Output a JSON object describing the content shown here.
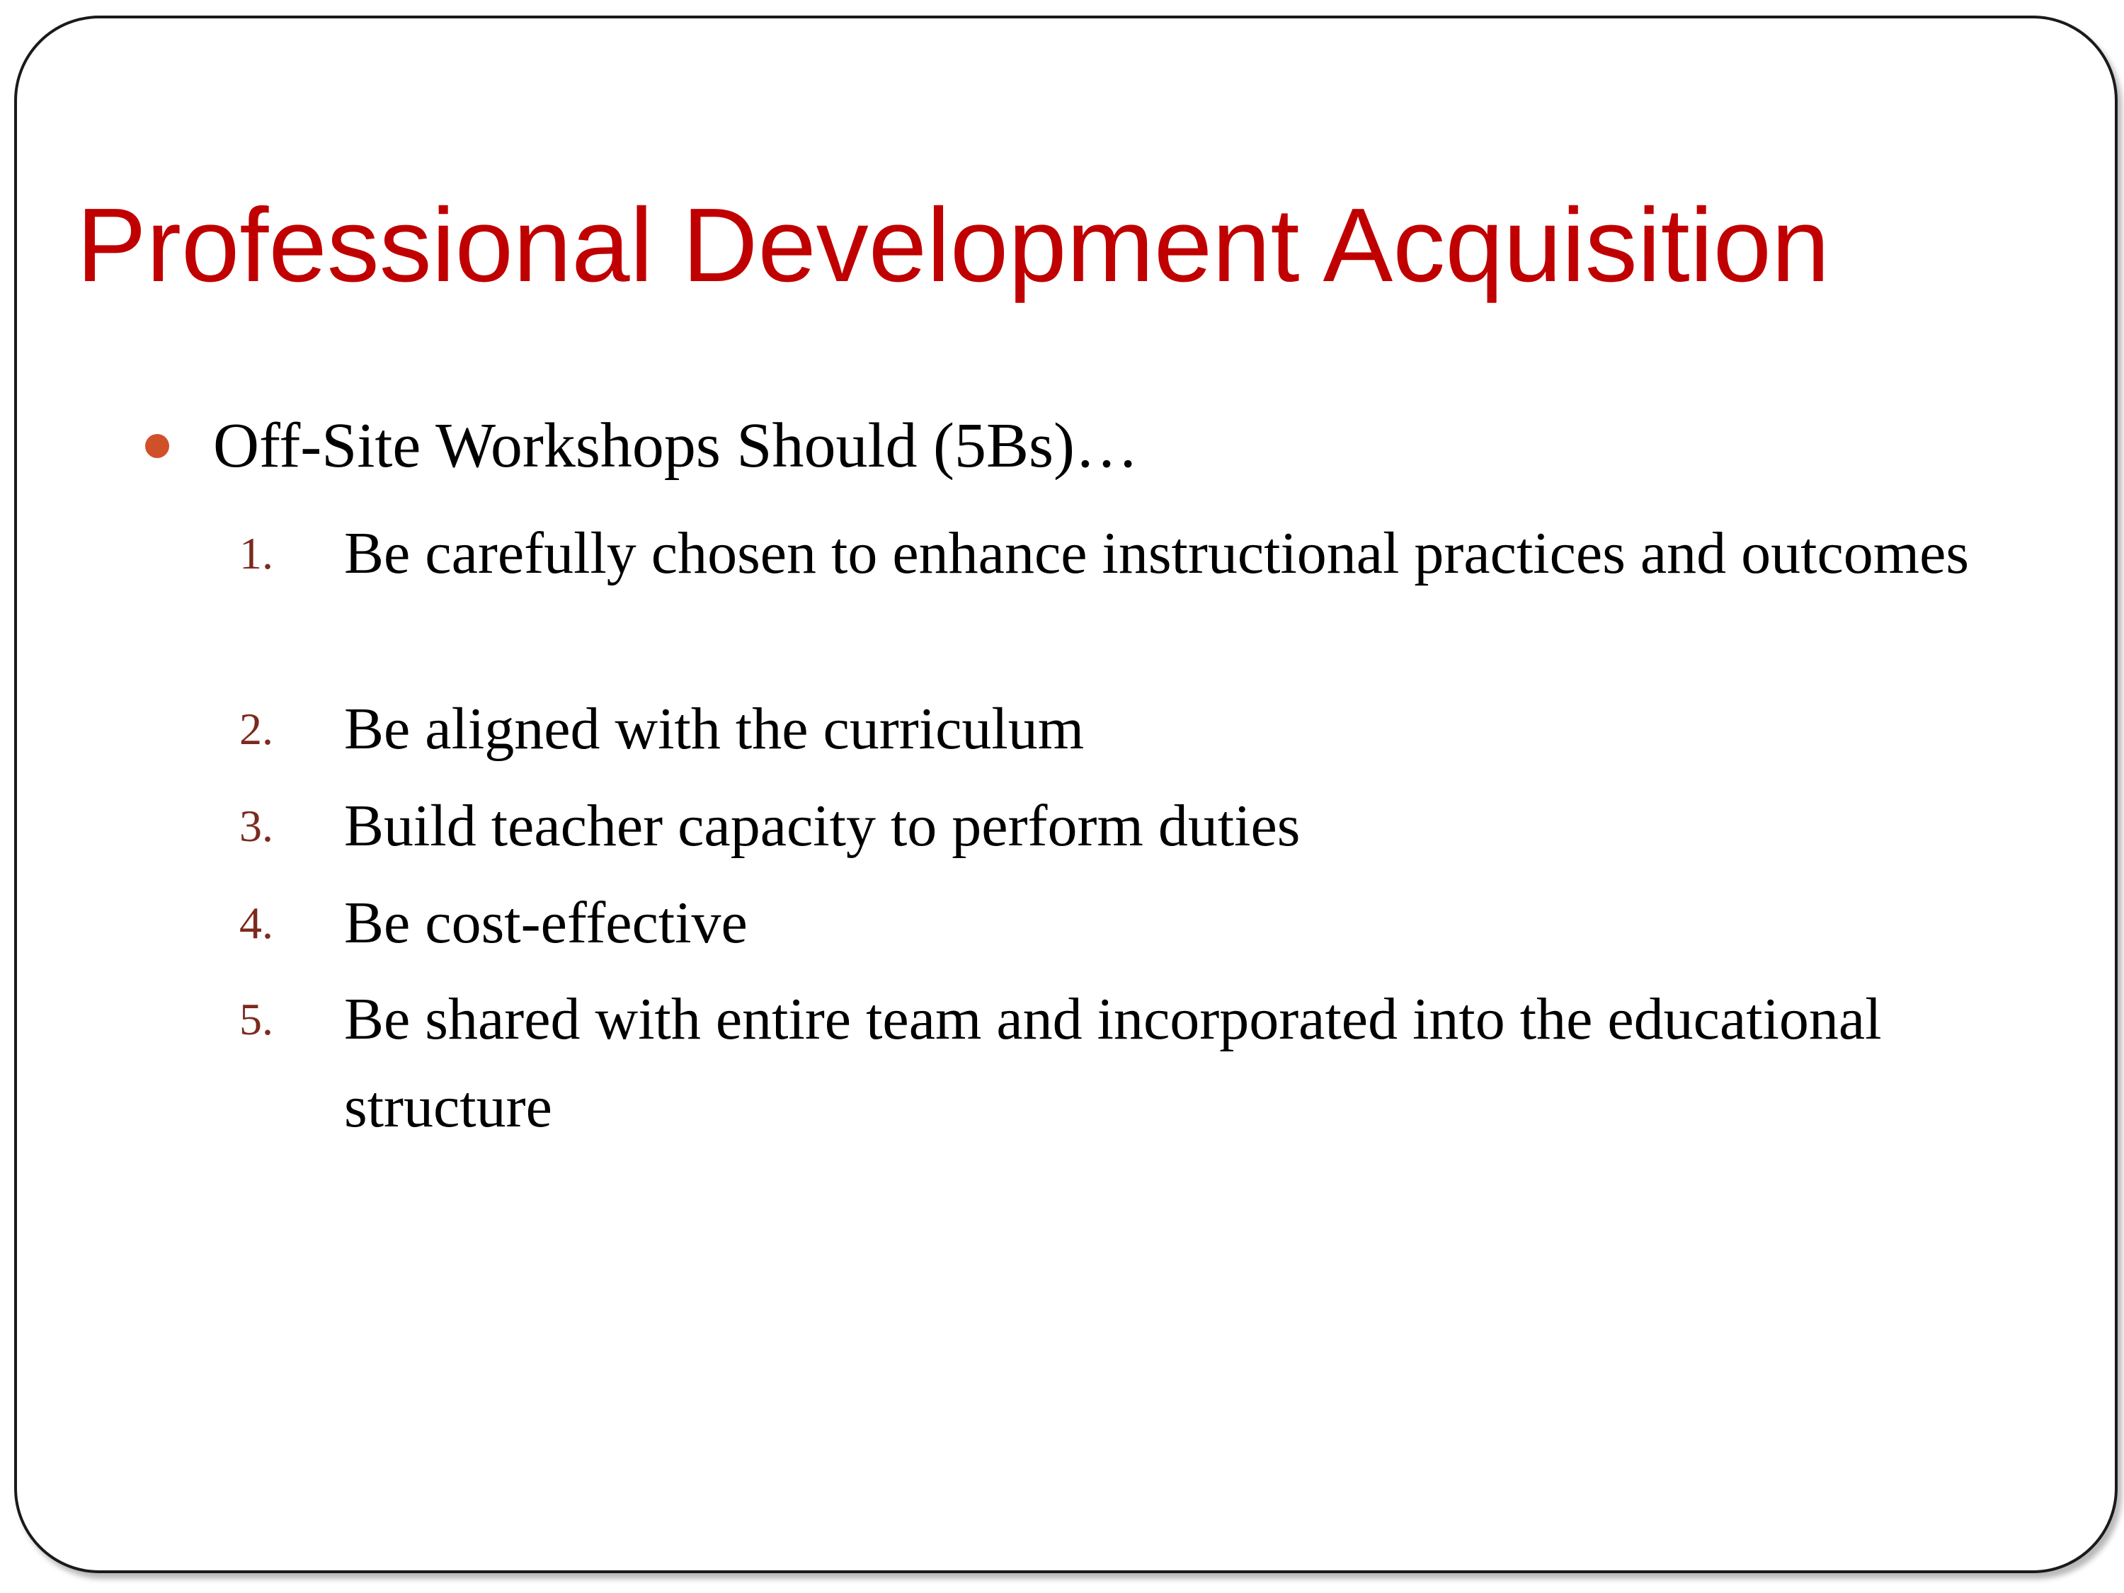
{
  "slide": {
    "title": "Professional Development Acquisition",
    "bullet": "Off-Site Workshops Should (5Bs)…",
    "items": [
      {
        "num": "1.",
        "text": "Be carefully chosen to enhance instructional practices and outcomes"
      },
      {
        "num": "2.",
        "text": "Be aligned with the curriculum"
      },
      {
        "num": "3.",
        "text": "Build teacher capacity to perform duties"
      },
      {
        "num": "4.",
        "text": "Be cost-effective"
      },
      {
        "num": "5.",
        "text": "Be shared with entire team and incorporated into the educational structure"
      }
    ]
  },
  "colors": {
    "title": "#c00000",
    "bullet_dot": "#d0502a",
    "numbering": "#7b2a1e",
    "body_text": "#000000"
  }
}
